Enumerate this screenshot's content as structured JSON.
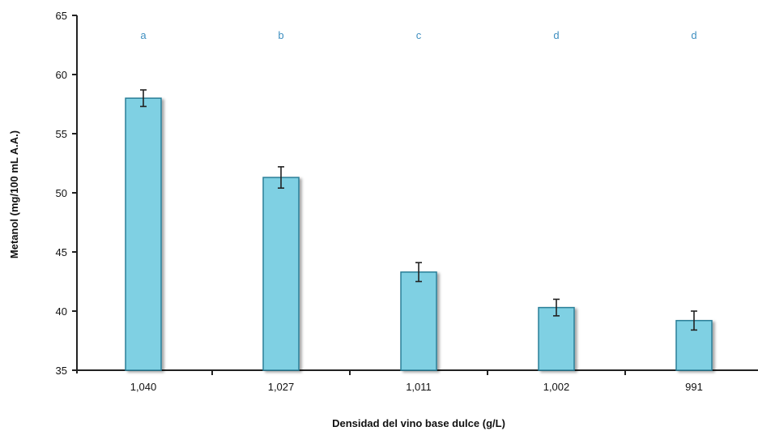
{
  "chart_data": {
    "type": "bar",
    "title": "",
    "xlabel": "Densidad del vino base dulce (g/L)",
    "ylabel": "Metanol (mg/100 mL A.A.)",
    "categories": [
      "1,040",
      "1,027",
      "1,011",
      "1,002",
      "991"
    ],
    "values": [
      58.0,
      51.3,
      43.3,
      40.3,
      39.2
    ],
    "error": [
      0.7,
      0.9,
      0.8,
      0.7,
      0.8
    ],
    "group_letters": [
      "a",
      "b",
      "c",
      "d",
      "d"
    ],
    "ylim": [
      35,
      65
    ],
    "yticks": [
      "35",
      "40",
      "45",
      "50",
      "55",
      "60",
      "65"
    ],
    "grid": false,
    "legend": "none",
    "colors": {
      "bar_fill": "#7fd0e3",
      "bar_stroke": "#2b7f98",
      "letters": "#3f8fc0",
      "axis": "#222222"
    }
  }
}
